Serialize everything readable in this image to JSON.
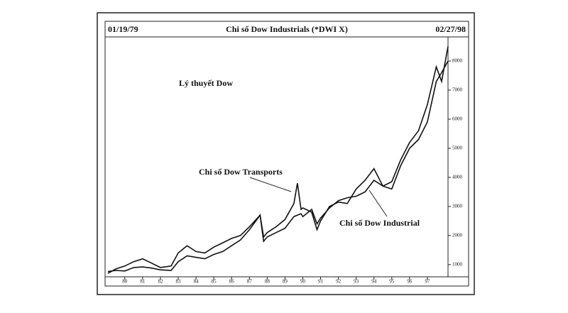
{
  "chart_data": {
    "type": "line",
    "title": "Chi số Dow Industrials (*DWI X)",
    "start_date": "01/19/79",
    "end_date": "02/27/98",
    "annotations": [
      "Lý thuyết Dow",
      "Chi số Dow Transports",
      "Chi số Dow Industrial"
    ],
    "x": [
      1979.05,
      1979.5,
      1980.0,
      1980.5,
      1981.0,
      1981.5,
      1982.0,
      1982.6,
      1983.0,
      1983.5,
      1984.0,
      1984.5,
      1985.0,
      1985.5,
      1986.0,
      1986.5,
      1987.0,
      1987.6,
      1987.8,
      1988.0,
      1988.5,
      1989.0,
      1989.5,
      1989.7,
      1989.9,
      1990.0,
      1990.5,
      1990.8,
      1991.0,
      1991.5,
      1992.0,
      1992.5,
      1993.0,
      1993.5,
      1994.0,
      1994.5,
      1995.0,
      1995.5,
      1996.0,
      1996.5,
      1997.0,
      1997.5,
      1997.8,
      1998.16
    ],
    "series": [
      {
        "name": "Dow Industrials",
        "color": "#111111",
        "values": [
          760,
          800,
          780,
          900,
          920,
          880,
          820,
          800,
          1100,
          1300,
          1250,
          1200,
          1350,
          1450,
          1650,
          1850,
          2200,
          2700,
          1800,
          1950,
          2100,
          2250,
          2650,
          2700,
          2750,
          2650,
          2900,
          2400,
          2600,
          2950,
          3200,
          3300,
          3350,
          3500,
          3900,
          3700,
          3850,
          4600,
          5200,
          5600,
          6500,
          7800,
          7300,
          8500
        ]
      },
      {
        "name": "Dow Transports",
        "color": "#111111",
        "values": [
          700,
          850,
          950,
          1100,
          1200,
          1050,
          900,
          950,
          1400,
          1650,
          1450,
          1400,
          1600,
          1750,
          1900,
          2000,
          2300,
          2700,
          1950,
          2100,
          2300,
          2550,
          3100,
          3800,
          2900,
          2950,
          2800,
          2200,
          2500,
          3000,
          3150,
          3100,
          3600,
          3900,
          4300,
          3700,
          3600,
          4400,
          5000,
          5300,
          5900,
          7300,
          7600,
          8000
        ]
      }
    ],
    "xlim": [
      1979.05,
      1998.16
    ],
    "xticks": [
      {
        "value": 1980,
        "label": "80"
      },
      {
        "value": 1981,
        "label": "81"
      },
      {
        "value": 1982,
        "label": "82"
      },
      {
        "value": 1983,
        "label": "83"
      },
      {
        "value": 1984,
        "label": "84"
      },
      {
        "value": 1985,
        "label": "85"
      },
      {
        "value": 1986,
        "label": "86"
      },
      {
        "value": 1987,
        "label": "87"
      },
      {
        "value": 1988,
        "label": "88"
      },
      {
        "value": 1989,
        "label": "89"
      },
      {
        "value": 1990,
        "label": "90"
      },
      {
        "value": 1991,
        "label": "91"
      },
      {
        "value": 1992,
        "label": "92"
      },
      {
        "value": 1993,
        "label": "93"
      },
      {
        "value": 1994,
        "label": "94"
      },
      {
        "value": 1995,
        "label": "95"
      },
      {
        "value": 1996,
        "label": "96"
      },
      {
        "value": 1997,
        "label": "97"
      }
    ],
    "ylim": [
      580,
      8830
    ],
    "yticks": [
      1000,
      2000,
      3000,
      4000,
      5000,
      6000,
      7000,
      8000
    ]
  }
}
